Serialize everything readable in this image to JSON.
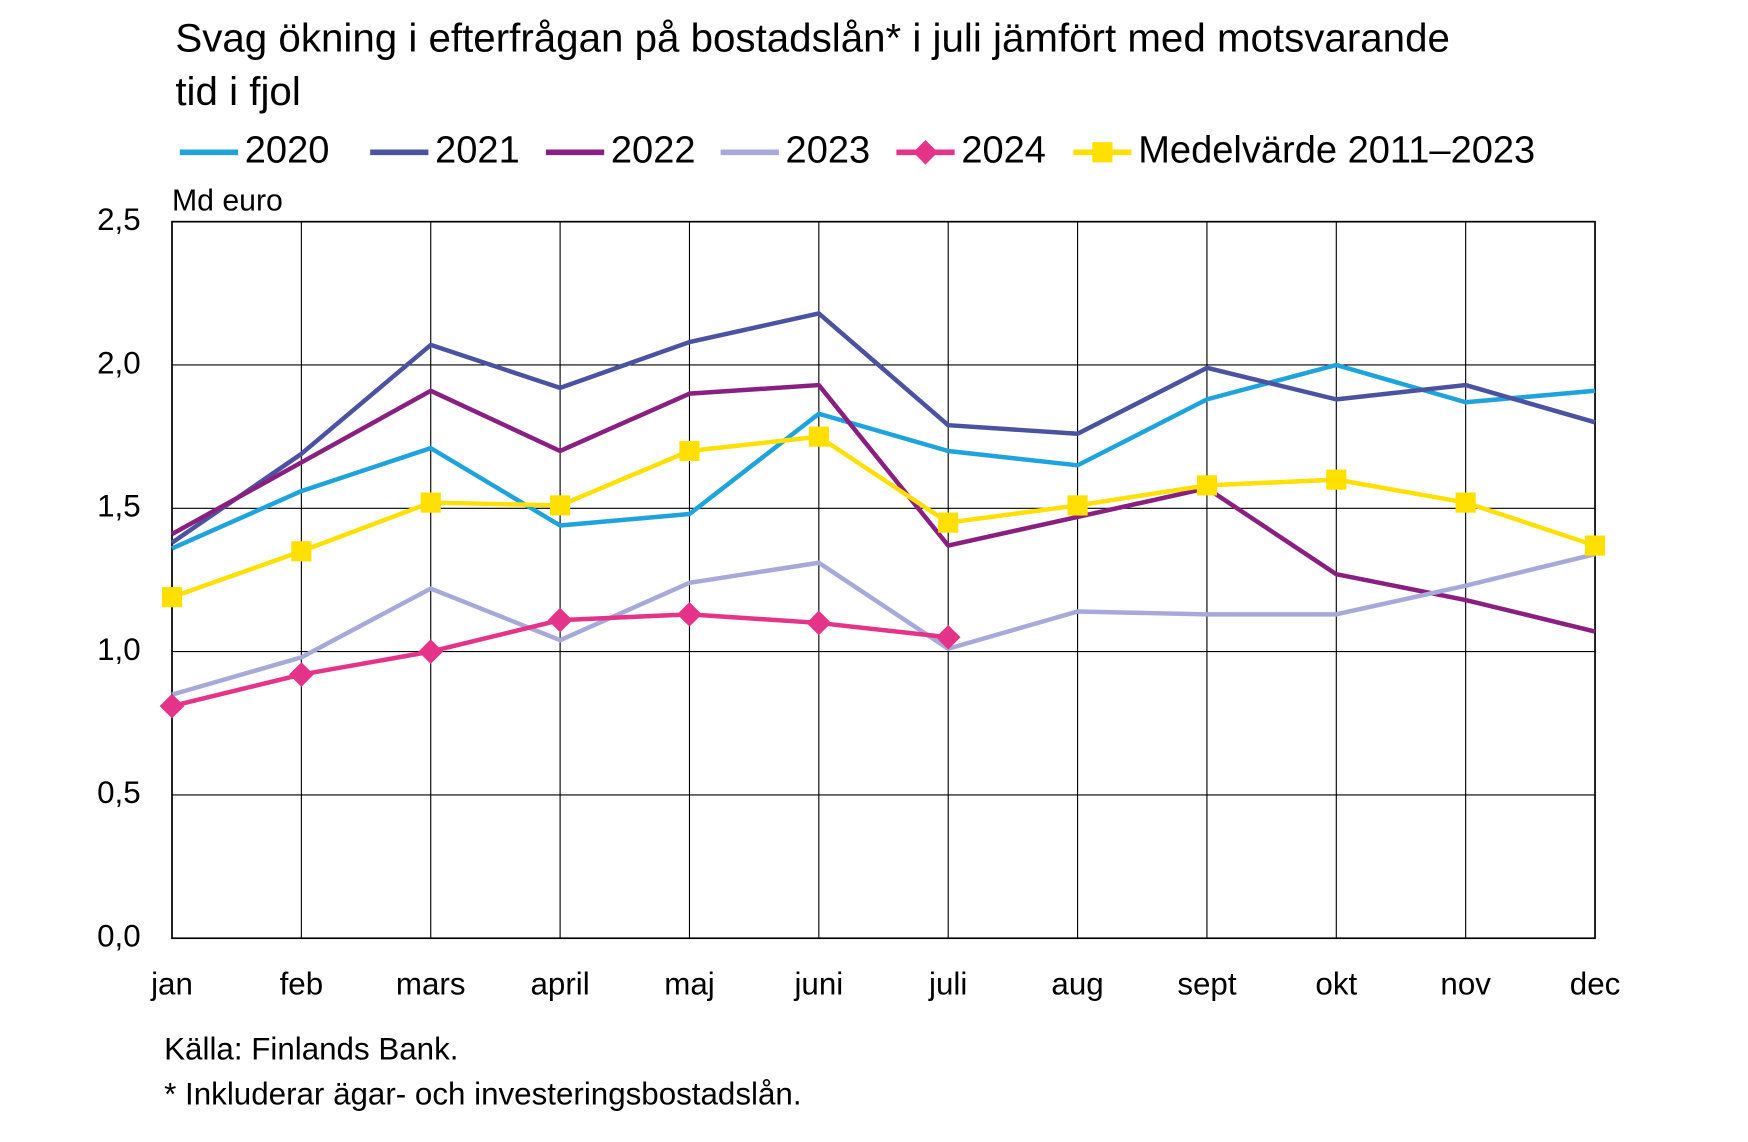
{
  "chart_data": {
    "type": "line",
    "title": "Svag ökning i efterfrågan på bostadslån* i juli jämfört med motsvarande tid i fjol",
    "y_label": "Md euro",
    "categories": [
      "jan",
      "feb",
      "mars",
      "april",
      "maj",
      "juni",
      "juli",
      "aug",
      "sept",
      "okt",
      "nov",
      "dec"
    ],
    "series": [
      {
        "name": "2020",
        "color": "#1ea3dc",
        "values": [
          1.36,
          1.56,
          1.71,
          1.44,
          1.48,
          1.83,
          1.7,
          1.65,
          1.88,
          2.0,
          1.87,
          1.91
        ]
      },
      {
        "name": "2021",
        "color": "#4b52a0",
        "values": [
          1.38,
          1.69,
          2.07,
          1.92,
          2.08,
          2.18,
          1.79,
          1.76,
          1.99,
          1.88,
          1.93,
          1.8
        ]
      },
      {
        "name": "2022",
        "color": "#8a1f82",
        "values": [
          1.41,
          1.66,
          1.91,
          1.7,
          1.9,
          1.93,
          1.37,
          1.47,
          1.57,
          1.27,
          1.18,
          1.07
        ]
      },
      {
        "name": "2023",
        "color": "#a7a9d8",
        "values": [
          0.85,
          0.98,
          1.22,
          1.04,
          1.24,
          1.31,
          1.01,
          1.14,
          1.13,
          1.13,
          1.23,
          1.34
        ]
      },
      {
        "name": "2024",
        "color": "#e6338a",
        "marker": "diamond",
        "values": [
          0.81,
          0.92,
          1.0,
          1.11,
          1.13,
          1.1,
          1.05,
          null,
          null,
          null,
          null,
          null
        ]
      },
      {
        "name": "Medelvärde 2011–2023",
        "color": "#ffe000",
        "marker": "square",
        "values": [
          1.19,
          1.35,
          1.52,
          1.51,
          1.7,
          1.75,
          1.45,
          1.51,
          1.58,
          1.6,
          1.52,
          1.37
        ]
      }
    ],
    "ylim": [
      0,
      2.5
    ],
    "yticks": [
      {
        "value": 0,
        "label": "0,0"
      },
      {
        "value": 0.5,
        "label": "0,5"
      },
      {
        "value": 1,
        "label": "1,0"
      },
      {
        "value": 1.5,
        "label": "1,5"
      },
      {
        "value": 2,
        "label": "2,0"
      },
      {
        "value": 2.5,
        "label": "2,5"
      }
    ],
    "grid": true,
    "notes": [
      "Källa: Finlands Bank.",
      "* Inkluderar ägar- och investeringsbostadslån."
    ]
  }
}
